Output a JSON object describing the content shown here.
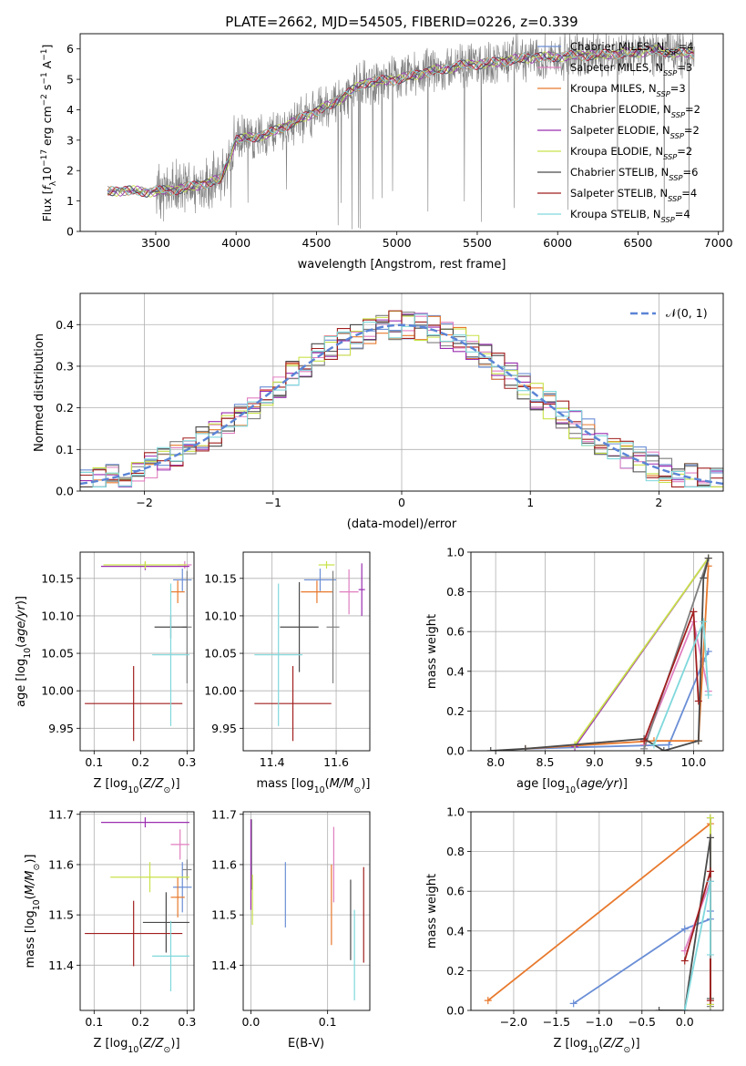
{
  "figure": {
    "title": "PLATE=2662, MJD=54505, FIBERID=0226, z=0.339"
  },
  "series_colors": [
    "#6a8ed6",
    "#e07fc0",
    "#e8792d",
    "#7f7f7f",
    "#9b2eb0",
    "#c8e24a",
    "#4a4a4a",
    "#a11f1f",
    "#7fd8dc"
  ],
  "chart_data": [
    {
      "type": "line",
      "panel": "spectrum",
      "xlabel": "wavelength [Angstrom, rest frame]",
      "ylabel": "Flux [f_λ 10^-17 erg cm^-2 s^-1 A^-1]",
      "xlim": [
        3030,
        7030
      ],
      "ylim": [
        0,
        6.5
      ],
      "xticks": [
        3500,
        4000,
        4500,
        5000,
        5500,
        6000,
        6500,
        7000
      ],
      "yticks": [
        0,
        1,
        2,
        3,
        4,
        5,
        6
      ],
      "legend_position": "top-right",
      "legend": [
        {
          "label": "Chabrier MILES, N",
          "sub": "SSP",
          "suffix": "=4"
        },
        {
          "label": "Salpeter MILES, N",
          "sub": "SSP",
          "suffix": "=3"
        },
        {
          "label": "Kroupa MILES, N",
          "sub": "SSP",
          "suffix": "=3"
        },
        {
          "label": "Chabrier ELODIE, N",
          "sub": "SSP",
          "suffix": "=2"
        },
        {
          "label": "Salpeter ELODIE, N",
          "sub": "SSP",
          "suffix": "=2"
        },
        {
          "label": "Kroupa ELODIE, N",
          "sub": "SSP",
          "suffix": "=2"
        },
        {
          "label": "Chabrier STELIB, N",
          "sub": "SSP",
          "suffix": "=6"
        },
        {
          "label": "Salpeter STELIB, N",
          "sub": "SSP",
          "suffix": "=4"
        },
        {
          "label": "Kroupa STELIB, N",
          "sub": "SSP",
          "suffix": "=4"
        }
      ],
      "continuum_knots": {
        "x": [
          3200,
          3300,
          3450,
          3600,
          3750,
          3900,
          3950,
          4000,
          4100,
          4200,
          4400,
          4600,
          4800,
          5000,
          5200,
          5400,
          5600,
          5800,
          6000,
          6200,
          6400,
          6600,
          6800
        ],
        "y": [
          1.3,
          1.35,
          1.3,
          1.35,
          1.5,
          1.7,
          2.3,
          3.0,
          3.1,
          3.2,
          3.7,
          4.2,
          4.9,
          5.0,
          5.25,
          5.45,
          5.55,
          5.7,
          5.75,
          5.8,
          5.85,
          5.95,
          5.85
        ]
      },
      "grid": false
    },
    {
      "type": "histogram",
      "panel": "residuals",
      "xlabel": "(data-model)/error",
      "ylabel": "Normed distribution",
      "xlim": [
        -2.5,
        2.5
      ],
      "ylim": [
        0,
        0.475
      ],
      "xticks": [
        -2,
        -1,
        0,
        1,
        2
      ],
      "yticks": [
        0.0,
        0.1,
        0.2,
        0.3,
        0.4
      ],
      "bin_width": 0.1,
      "reference_curve": "N(0,1) normal density",
      "legend_position": "top-right",
      "legend": "𝒩(0, 1)",
      "grid": true
    },
    {
      "type": "scatter",
      "panel": "age-vs-Z",
      "xlabel": "Z [log10(Z/Z⊙)]",
      "ylabel": "age  [log10(age/yr)]",
      "xlim": [
        0.07,
        0.315
      ],
      "ylim": [
        9.92,
        10.185
      ],
      "xticks": [
        0.1,
        0.2,
        0.3
      ],
      "yticks": [
        9.95,
        10.0,
        10.05,
        10.1,
        10.15
      ],
      "points": [
        {
          "x": 0.29,
          "y": 10.148,
          "xerr": 0.02,
          "yerr": 0.015
        },
        {
          "x": 0.295,
          "y": 10.168,
          "xerr": 0.015,
          "yerr": 0.005
        },
        {
          "x": 0.28,
          "y": 10.132,
          "xerr": 0.015,
          "yerr": 0.015
        },
        {
          "x": 0.3,
          "y": 10.085,
          "xerr": 0.01,
          "yerr": 0.075
        },
        {
          "x": 0.21,
          "y": 10.166,
          "xerr": 0.095,
          "yerr": 0.005
        },
        {
          "x": 0.21,
          "y": 10.168,
          "xerr": 0.09,
          "yerr": 0.005
        },
        {
          "x": 0.265,
          "y": 10.085,
          "xerr": 0.035,
          "yerr": 0.015
        },
        {
          "x": 0.185,
          "y": 9.983,
          "xerr": 0.105,
          "yerr": 0.05
        },
        {
          "x": 0.265,
          "y": 10.048,
          "xerr": 0.04,
          "yerr": 0.095
        }
      ],
      "grid": true
    },
    {
      "type": "scatter",
      "panel": "age-vs-mass",
      "xlabel": "mass [log10(M/M⊙)]",
      "ylabel": "",
      "xlim": [
        11.31,
        11.705
      ],
      "ylim": [
        9.92,
        10.185
      ],
      "xticks": [
        11.4,
        11.6
      ],
      "yticks": [
        9.95,
        10.0,
        10.05,
        10.1,
        10.15
      ],
      "points": [
        {
          "x": 11.55,
          "y": 10.148,
          "xerr": 0.05,
          "yerr": 0.015
        },
        {
          "x": 11.64,
          "y": 10.132,
          "xerr": 0.03,
          "yerr": 0.03
        },
        {
          "x": 11.54,
          "y": 10.132,
          "xerr": 0.05,
          "yerr": 0.015
        },
        {
          "x": 11.59,
          "y": 10.085,
          "xerr": 0.02,
          "yerr": 0.075
        },
        {
          "x": 11.68,
          "y": 10.135,
          "xerr": 0.01,
          "yerr": 0.035
        },
        {
          "x": 11.57,
          "y": 10.168,
          "xerr": 0.025,
          "yerr": 0.005
        },
        {
          "x": 11.485,
          "y": 10.085,
          "xerr": 0.06,
          "yerr": 0.06
        },
        {
          "x": 11.465,
          "y": 9.983,
          "xerr": 0.12,
          "yerr": 0.05
        },
        {
          "x": 11.42,
          "y": 10.048,
          "xerr": 0.075,
          "yerr": 0.095
        }
      ],
      "grid": true
    },
    {
      "type": "line",
      "panel": "massweight-vs-age",
      "xlabel": "age  [log10(age/yr)]",
      "ylabel": "mass weight",
      "xlim": [
        7.75,
        10.3
      ],
      "ylim": [
        0,
        1
      ],
      "xticks": [
        8.0,
        8.5,
        9.0,
        9.5,
        10.0
      ],
      "yticks": [
        0.0,
        0.2,
        0.4,
        0.6,
        0.8,
        1.0
      ],
      "series": [
        {
          "x": [
            8.3,
            9.75,
            10.1,
            10.15
          ],
          "y": [
            0.01,
            0.03,
            0.45,
            0.5
          ]
        },
        {
          "x": [
            9.5,
            10.0,
            10.15
          ],
          "y": [
            0.03,
            0.65,
            0.3
          ]
        },
        {
          "x": [
            8.3,
            9.6,
            10.05,
            10.15
          ],
          "y": [
            0.01,
            0.05,
            0.05,
            0.93
          ]
        },
        {
          "x": [
            9.5,
            10.15
          ],
          "y": [
            0.01,
            0.97
          ]
        },
        {
          "x": [
            8.8,
            10.15
          ],
          "y": [
            0.02,
            0.97
          ]
        },
        {
          "x": [
            8.8,
            10.15
          ],
          "y": [
            0.03,
            0.97
          ]
        },
        {
          "x": [
            7.95,
            8.3,
            9.5,
            9.7,
            10.05,
            10.1,
            10.15
          ],
          "y": [
            0.0,
            0.01,
            0.06,
            0.0,
            0.05,
            0.87,
            0.97
          ]
        },
        {
          "x": [
            9.5,
            10.0,
            10.05
          ],
          "y": [
            0.05,
            0.7,
            0.25
          ]
        },
        {
          "x": [
            9.6,
            10.1,
            10.15
          ],
          "y": [
            0.03,
            0.65,
            0.28
          ]
        }
      ],
      "grid": true
    },
    {
      "type": "scatter",
      "panel": "mass-vs-Z",
      "xlabel": "Z [log10(Z/Z⊙)]",
      "ylabel": "mass [log10(M/M⊙)]",
      "xlim": [
        0.07,
        0.315
      ],
      "ylim": [
        11.31,
        11.705
      ],
      "xticks": [
        0.1,
        0.2,
        0.3
      ],
      "yticks": [
        11.4,
        11.5,
        11.6,
        11.7
      ],
      "points": [
        {
          "x": 0.29,
          "y": 11.555,
          "xerr": 0.02,
          "yerr": 0.05
        },
        {
          "x": 0.285,
          "y": 11.64,
          "xerr": 0.02,
          "yerr": 0.03
        },
        {
          "x": 0.28,
          "y": 11.535,
          "xerr": 0.015,
          "yerr": 0.04
        },
        {
          "x": 0.3,
          "y": 11.59,
          "xerr": 0.01,
          "yerr": 0.02
        },
        {
          "x": 0.21,
          "y": 11.684,
          "xerr": 0.095,
          "yerr": 0.01
        },
        {
          "x": 0.22,
          "y": 11.575,
          "xerr": 0.085,
          "yerr": 0.03
        },
        {
          "x": 0.255,
          "y": 11.485,
          "xerr": 0.05,
          "yerr": 0.06
        },
        {
          "x": 0.185,
          "y": 11.463,
          "xerr": 0.105,
          "yerr": 0.065
        },
        {
          "x": 0.265,
          "y": 11.418,
          "xerr": 0.04,
          "yerr": 0.07
        }
      ],
      "grid": true
    },
    {
      "type": "scatter",
      "panel": "mass-vs-EBV",
      "xlabel": "E(B-V)",
      "ylabel": "",
      "xlim": [
        -0.01,
        0.155
      ],
      "ylim": [
        11.31,
        11.705
      ],
      "xticks": [
        0.0,
        0.1
      ],
      "yticks": [
        11.4,
        11.5,
        11.6,
        11.7
      ],
      "points": [
        {
          "x": 0.045,
          "y": 11.54,
          "yerr": 0.065
        },
        {
          "x": 0.108,
          "y": 11.6,
          "yerr": 0.075
        },
        {
          "x": 0.105,
          "y": 11.52,
          "yerr": 0.08
        },
        {
          "x": 0.001,
          "y": 11.62,
          "yerr": 0.07
        },
        {
          "x": 0.0,
          "y": 11.6,
          "yerr": 0.09
        },
        {
          "x": 0.002,
          "y": 11.53,
          "yerr": 0.05
        },
        {
          "x": 0.13,
          "y": 11.49,
          "yerr": 0.08
        },
        {
          "x": 0.147,
          "y": 11.5,
          "yerr": 0.095
        },
        {
          "x": 0.135,
          "y": 11.42,
          "yerr": 0.09
        }
      ],
      "grid": true
    },
    {
      "type": "line",
      "panel": "massweight-vs-Z",
      "xlabel": "Z [log10(Z/Z⊙)]",
      "ylabel": "mass weight",
      "xlim": [
        -2.5,
        0.45
      ],
      "ylim": [
        0,
        1
      ],
      "xticks": [
        -2.0,
        -1.5,
        -1.0,
        -0.5,
        0.0
      ],
      "yticks": [
        0.0,
        0.2,
        0.4,
        0.6,
        0.8,
        1.0
      ],
      "series": [
        {
          "x": [
            -1.3,
            0.0,
            0.3,
            0.3
          ],
          "y": [
            0.035,
            0.41,
            0.46,
            0.5
          ]
        },
        {
          "x": [
            0.0,
            0.3
          ],
          "y": [
            0.3,
            0.65
          ]
        },
        {
          "x": [
            -2.3,
            0.3
          ],
          "y": [
            0.05,
            0.94
          ]
        },
        {
          "x": [
            0.3,
            0.3
          ],
          "y": [
            0.02,
            0.97
          ]
        },
        {
          "x": [
            0.3,
            0.3
          ],
          "y": [
            0.03,
            0.97
          ]
        },
        {
          "x": [
            0.3,
            0.3
          ],
          "y": [
            0.03,
            0.97
          ]
        },
        {
          "x": [
            -0.3,
            0.0,
            0.3,
            0.3
          ],
          "y": [
            0.0,
            0.0,
            0.87,
            0.06
          ]
        },
        {
          "x": [
            0.0,
            0.3,
            0.3
          ],
          "y": [
            0.25,
            0.7,
            0.05
          ]
        },
        {
          "x": [
            0.0,
            0.3,
            0.3
          ],
          "y": [
            0.0,
            0.65,
            0.28
          ]
        }
      ],
      "grid": true
    }
  ]
}
